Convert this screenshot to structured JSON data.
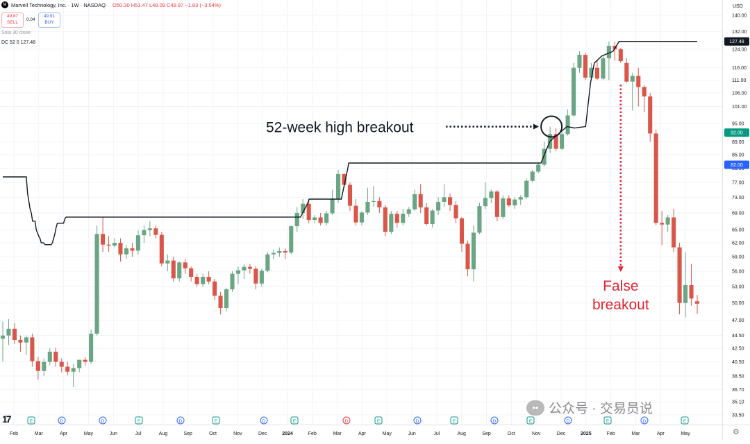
{
  "header": {
    "logo_icon": "marvell-logo-icon",
    "symbol": "Marvell Technology, Inc. · 1W · NASDAQ",
    "ohlc": "O50.30 H51.47 L48.09 C49.87 −1.83 (−3.54%)",
    "sell_price": "49.87",
    "sell_label": "SELL",
    "spread": "0.04",
    "buy_price": "49.91",
    "buy_label": "BUY",
    "indicator_1": "Sola 30 close",
    "indicator_2": "DC 52 0  127.48"
  },
  "price_axis": {
    "currency": "USD",
    "ticks": [
      "140.00",
      "132.00",
      "124.00",
      "116.00",
      "111.00",
      "106.00",
      "101.00",
      "95.00",
      "89.00",
      "85.00",
      "81.00",
      "77.00",
      "73.00",
      "69.00",
      "65.00",
      "62.00",
      "59.00",
      "56.00",
      "53.00",
      "50.00",
      "47.00",
      "44.50",
      "42.50",
      "40.50",
      "38.50",
      "36.70",
      "35.10",
      "33.50"
    ],
    "dc_tag": "127.48",
    "green_tag": "92.00",
    "blue_tag": "82.00",
    "colors": {
      "dc_tag": "#131722",
      "green_tag": "#089981",
      "blue_tag": "#2962ff"
    }
  },
  "time_axis": {
    "labels": [
      "Feb",
      "Mar",
      "Apr",
      "May",
      "Jun",
      "Jul",
      "Aug",
      "Sep",
      "Oct",
      "Nov",
      "Dec",
      "2024",
      "Feb",
      "Mar",
      "Apr",
      "May",
      "Jun",
      "Jul",
      "Aug",
      "Sep",
      "Oct",
      "Nov",
      "Dec",
      "2025",
      "Feb",
      "Mar",
      "Apr",
      "May"
    ]
  },
  "events": {
    "markers": [
      "E",
      "D",
      "D",
      "E",
      "D",
      "E",
      "D",
      "E",
      "D",
      "E",
      "D",
      "E",
      "D",
      "E",
      "D",
      "E",
      "D",
      "E",
      "D",
      "D",
      "E"
    ],
    "colors": {
      "E": "#089981",
      "D": "#2962ff",
      "E_red": "#f23645"
    }
  },
  "annotations": {
    "breakout_text": "52-week high breakout",
    "false_line1": "False",
    "false_line2": "breakout",
    "false_color": "#e0252f"
  },
  "watermark": {
    "icon": "wechat-icon",
    "text": "公众号 · 交易员说"
  },
  "branding": {
    "tv_logo": "17"
  },
  "chart_data": {
    "type": "candlestick",
    "title": "Marvell Technology, Inc. · 1W · NASDAQ",
    "colors": {
      "up": "#6aa584",
      "down": "#d9574a",
      "channel": "#131722"
    },
    "ylim": [
      33.5,
      140
    ],
    "y_scale": "log",
    "candles": [
      [
        44.0,
        46.8,
        40.5,
        44.5
      ],
      [
        44.5,
        47.2,
        43.0,
        45.6
      ],
      [
        45.6,
        46.5,
        43.2,
        43.8
      ],
      [
        43.8,
        44.5,
        42.0,
        43.4
      ],
      [
        43.4,
        44.5,
        41.5,
        44.2
      ],
      [
        44.2,
        44.8,
        39.8,
        40.6
      ],
      [
        40.6,
        41.2,
        38.0,
        39.2
      ],
      [
        39.2,
        41.0,
        38.5,
        40.5
      ],
      [
        40.5,
        42.5,
        40.0,
        42.0
      ],
      [
        42.0,
        42.6,
        39.8,
        40.5
      ],
      [
        40.5,
        41.0,
        39.0,
        39.8
      ],
      [
        39.8,
        40.5,
        38.6,
        39.1
      ],
      [
        39.1,
        40.2,
        37.0,
        39.6
      ],
      [
        39.6,
        40.8,
        39.0,
        40.8
      ],
      [
        40.8,
        41.2,
        40.0,
        40.5
      ],
      [
        40.5,
        45.5,
        40.2,
        44.8
      ],
      [
        44.8,
        66.0,
        44.5,
        64.0
      ],
      [
        64.0,
        68.0,
        60.0,
        61.6
      ],
      [
        61.6,
        63.5,
        60.0,
        61.4
      ],
      [
        61.4,
        63.0,
        61.0,
        62.0
      ],
      [
        62.0,
        63.0,
        58.0,
        59.5
      ],
      [
        59.5,
        61.5,
        58.5,
        60.8
      ],
      [
        60.8,
        62.0,
        59.0,
        60.3
      ],
      [
        60.3,
        64.8,
        59.5,
        63.7
      ],
      [
        63.7,
        66.0,
        62.0,
        64.9
      ],
      [
        64.9,
        67.0,
        63.5,
        65.3
      ],
      [
        65.3,
        66.0,
        63.0,
        63.8
      ],
      [
        63.8,
        64.5,
        57.0,
        57.6
      ],
      [
        57.6,
        59.5,
        56.0,
        58.2
      ],
      [
        58.2,
        59.0,
        54.0,
        54.6
      ],
      [
        54.6,
        58.0,
        54.0,
        57.8
      ],
      [
        57.8,
        58.5,
        55.5,
        56.6
      ],
      [
        56.6,
        57.0,
        54.0,
        54.9
      ],
      [
        54.9,
        55.5,
        53.0,
        53.5
      ],
      [
        53.5,
        55.5,
        53.0,
        54.9
      ],
      [
        54.9,
        56.0,
        53.5,
        54.0
      ],
      [
        54.0,
        54.5,
        50.5,
        51.3
      ],
      [
        51.3,
        52.0,
        48.0,
        49.1
      ],
      [
        49.1,
        52.8,
        48.5,
        52.5
      ],
      [
        52.5,
        56.0,
        52.0,
        55.5
      ],
      [
        55.5,
        57.0,
        53.5,
        56.2
      ],
      [
        56.2,
        57.5,
        54.5,
        56.9
      ],
      [
        56.9,
        57.5,
        55.5,
        56.5
      ],
      [
        56.5,
        57.0,
        52.5,
        53.6
      ],
      [
        53.6,
        56.5,
        53.0,
        56.1
      ],
      [
        56.1,
        60.0,
        55.8,
        59.5
      ],
      [
        59.5,
        60.5,
        58.5,
        59.8
      ],
      [
        59.8,
        61.0,
        59.0,
        60.2
      ],
      [
        60.2,
        60.8,
        58.5,
        59.9
      ],
      [
        59.9,
        66.0,
        59.5,
        65.8
      ],
      [
        65.8,
        70.5,
        64.5,
        69.0
      ],
      [
        69.0,
        72.5,
        67.5,
        71.3
      ],
      [
        71.3,
        72.0,
        66.5,
        67.3
      ],
      [
        67.3,
        68.5,
        66.5,
        67.9
      ],
      [
        67.9,
        69.0,
        66.0,
        66.6
      ],
      [
        66.6,
        69.5,
        66.0,
        68.9
      ],
      [
        68.9,
        75.0,
        68.5,
        72.5
      ],
      [
        72.5,
        80.5,
        71.5,
        79.3
      ],
      [
        79.3,
        79.5,
        75.5,
        76.3
      ],
      [
        76.3,
        77.0,
        69.5,
        70.8
      ],
      [
        70.8,
        72.5,
        66.0,
        66.7
      ],
      [
        66.7,
        69.5,
        66.0,
        69.1
      ],
      [
        69.1,
        75.5,
        68.5,
        71.8
      ],
      [
        71.8,
        76.0,
        70.5,
        72.0
      ],
      [
        72.0,
        73.0,
        69.0,
        70.4
      ],
      [
        70.4,
        71.0,
        63.5,
        64.5
      ],
      [
        64.5,
        69.5,
        64.0,
        68.8
      ],
      [
        68.8,
        69.5,
        65.5,
        66.6
      ],
      [
        66.6,
        70.0,
        66.0,
        68.8
      ],
      [
        68.8,
        70.5,
        68.0,
        69.9
      ],
      [
        69.9,
        75.0,
        69.5,
        73.8
      ],
      [
        73.8,
        76.5,
        69.0,
        70.4
      ],
      [
        70.4,
        71.5,
        66.0,
        66.3
      ],
      [
        66.3,
        70.0,
        65.5,
        69.6
      ],
      [
        69.6,
        73.0,
        68.5,
        71.8
      ],
      [
        71.8,
        76.5,
        70.5,
        73.0
      ],
      [
        73.0,
        74.0,
        69.5,
        71.0
      ],
      [
        71.0,
        72.0,
        66.5,
        67.7
      ],
      [
        67.7,
        68.0,
        60.0,
        61.8
      ],
      [
        61.8,
        62.5,
        55.0,
        56.4
      ],
      [
        56.4,
        66.0,
        54.0,
        64.3
      ],
      [
        64.3,
        71.5,
        64.0,
        70.7
      ],
      [
        70.7,
        77.0,
        70.0,
        72.8
      ],
      [
        72.8,
        75.0,
        71.5,
        74.5
      ],
      [
        74.5,
        74.8,
        67.0,
        68.0
      ],
      [
        68.0,
        73.5,
        67.5,
        72.7
      ],
      [
        72.7,
        73.5,
        70.5,
        70.9
      ],
      [
        70.9,
        73.0,
        70.0,
        72.4
      ],
      [
        72.4,
        73.5,
        71.0,
        73.0
      ],
      [
        73.0,
        78.0,
        72.5,
        77.4
      ],
      [
        77.4,
        80.5,
        77.0,
        80.0
      ],
      [
        80.0,
        82.5,
        79.5,
        82.0
      ],
      [
        82.0,
        89.0,
        81.5,
        86.8
      ],
      [
        86.8,
        94.0,
        85.5,
        91.5
      ],
      [
        91.5,
        93.5,
        86.0,
        86.8
      ],
      [
        86.8,
        92.5,
        86.5,
        91.5
      ],
      [
        91.5,
        100.0,
        91.0,
        97.8
      ],
      [
        97.8,
        118.0,
        97.5,
        116.0
      ],
      [
        116.0,
        123.0,
        114.0,
        121.5
      ],
      [
        121.5,
        122.5,
        111.0,
        112.0
      ],
      [
        112.0,
        118.0,
        111.0,
        116.0
      ],
      [
        116.0,
        119.0,
        111.0,
        111.6
      ],
      [
        111.6,
        121.0,
        111.0,
        120.0
      ],
      [
        120.0,
        127.5,
        111.0,
        125.5
      ],
      [
        125.5,
        127.48,
        119.0,
        124.0
      ],
      [
        124.0,
        124.5,
        118.0,
        118.8
      ],
      [
        118.0,
        120.0,
        110.0,
        110.4
      ],
      [
        110.4,
        114.0,
        99.5,
        112.7
      ],
      [
        112.7,
        116.0,
        101.0,
        108.3
      ],
      [
        108.3,
        109.0,
        99.0,
        104.7
      ],
      [
        104.7,
        106.0,
        89.0,
        91.7
      ],
      [
        91.7,
        93.0,
        66.0,
        66.6
      ],
      [
        66.6,
        69.5,
        61.5,
        66.2
      ],
      [
        66.2,
        68.5,
        64.5,
        67.9
      ],
      [
        67.9,
        70.0,
        60.0,
        61.0
      ],
      [
        61.0,
        62.0,
        48.0,
        50.0
      ],
      [
        50.0,
        60.0,
        47.5,
        53.3
      ],
      [
        53.3,
        57.5,
        49.5,
        50.8
      ],
      [
        50.3,
        51.47,
        48.09,
        49.87
      ]
    ],
    "donchian_upper": [
      [
        0,
        78.5
      ],
      [
        19,
        78.5
      ],
      [
        20,
        74.0
      ],
      [
        21,
        72.0
      ],
      [
        22,
        70.0
      ],
      [
        23,
        69.0
      ],
      [
        24,
        67.0
      ],
      [
        26,
        67.0
      ],
      [
        27,
        65.0
      ],
      [
        29,
        63.5
      ],
      [
        30,
        63.0
      ],
      [
        31,
        62.0
      ],
      [
        33,
        62.0
      ],
      [
        34,
        61.6
      ],
      [
        39,
        61.6
      ],
      [
        40,
        62.0
      ],
      [
        41,
        63.0
      ],
      [
        42,
        64.0
      ],
      [
        43,
        65.5
      ],
      [
        44,
        66.5
      ],
      [
        49,
        66.5
      ],
      [
        50,
        67.5
      ],
      [
        51,
        68.0
      ],
      [
        240,
        68.0
      ],
      [
        246,
        71.5
      ],
      [
        247,
        72.5
      ],
      [
        273,
        72.5
      ],
      [
        278,
        80.5
      ],
      [
        279,
        82.5
      ],
      [
        434,
        82.5
      ],
      [
        441,
        89.0
      ],
      [
        442,
        89.5
      ],
      [
        455,
        94.0
      ],
      [
        461,
        93.5
      ],
      [
        470,
        94.0
      ],
      [
        474,
        110.0
      ],
      [
        477,
        118.0
      ],
      [
        483,
        121.0
      ],
      [
        492,
        123.0
      ],
      [
        497,
        127.48
      ],
      [
        560,
        127.48
      ]
    ],
    "breakout_marker_price": 94.0,
    "false_breakout_price": 127.48
  }
}
